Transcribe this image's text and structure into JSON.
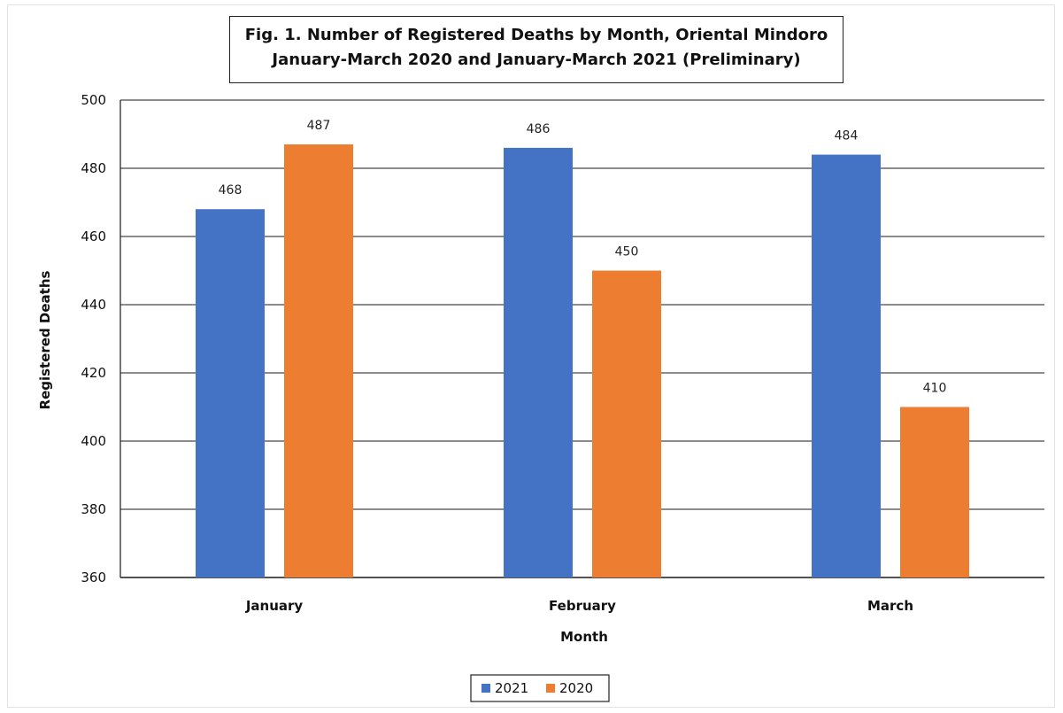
{
  "chart_data": {
    "type": "bar",
    "title": "Fig. 1. Number of Registered Deaths by Month, Oriental Mindoro",
    "subtitle": "January-March 2020 and January-March 2021 (Preliminary)",
    "xlabel": "Month",
    "ylabel": "Registered Deaths",
    "categories": [
      "January",
      "February",
      "March"
    ],
    "series": [
      {
        "name": "2021",
        "values": [
          468,
          486,
          484
        ],
        "color": "#4472c4"
      },
      {
        "name": "2020",
        "values": [
          487,
          450,
          410
        ],
        "color": "#ed7d31"
      }
    ],
    "ylim": [
      360,
      500
    ],
    "yticks": [
      360,
      380,
      400,
      420,
      440,
      460,
      480,
      500
    ],
    "grid": true,
    "legend": "bottom"
  }
}
